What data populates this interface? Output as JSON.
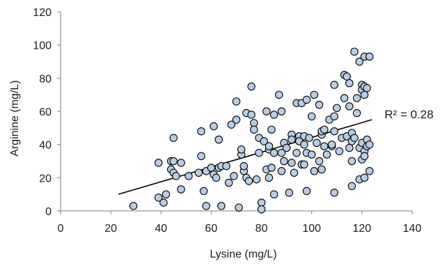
{
  "chart_data": {
    "type": "scatter",
    "xlabel": "Lysine (mg/L)",
    "ylabel": "Arginine (mg/L)",
    "xlim": [
      0,
      140
    ],
    "ylim": [
      0,
      120
    ],
    "x_ticks": [
      0,
      20,
      40,
      60,
      80,
      100,
      120,
      140
    ],
    "y_ticks": [
      0,
      20,
      40,
      60,
      80,
      100,
      120
    ],
    "grid": false,
    "legend": "none",
    "colors": {
      "marker_fill": "#b8cce4",
      "marker_stroke": "#000000",
      "trendline": "#000000"
    },
    "trendline": {
      "type": "linear",
      "x": [
        23,
        124
      ],
      "y": [
        10,
        55
      ],
      "annotation": "R² = 0.28"
    },
    "points": [
      [
        29,
        3
      ],
      [
        39,
        29
      ],
      [
        39,
        8
      ],
      [
        41,
        5
      ],
      [
        42,
        10
      ],
      [
        44,
        25
      ],
      [
        44,
        30
      ],
      [
        45,
        44
      ],
      [
        45,
        23
      ],
      [
        45,
        30
      ],
      [
        46,
        21
      ],
      [
        48,
        29
      ],
      [
        48,
        13
      ],
      [
        51,
        21
      ],
      [
        55,
        23
      ],
      [
        56,
        48
      ],
      [
        56,
        33
      ],
      [
        57,
        12
      ],
      [
        58,
        24
      ],
      [
        58,
        3
      ],
      [
        60,
        26
      ],
      [
        61,
        51
      ],
      [
        61,
        22
      ],
      [
        62,
        20
      ],
      [
        63,
        43
      ],
      [
        63,
        26
      ],
      [
        64,
        3
      ],
      [
        64,
        27
      ],
      [
        66,
        27
      ],
      [
        67,
        17
      ],
      [
        68,
        52
      ],
      [
        69,
        21
      ],
      [
        70,
        55
      ],
      [
        70,
        66
      ],
      [
        71,
        2
      ],
      [
        72,
        34
      ],
      [
        72,
        37
      ],
      [
        73,
        24
      ],
      [
        73,
        27
      ],
      [
        74,
        59
      ],
      [
        74,
        20
      ],
      [
        75,
        18
      ],
      [
        76,
        75
      ],
      [
        76,
        58
      ],
      [
        77,
        53
      ],
      [
        77,
        49
      ],
      [
        78,
        19
      ],
      [
        79,
        44
      ],
      [
        79,
        35
      ],
      [
        80,
        5
      ],
      [
        80,
        1
      ],
      [
        81,
        42
      ],
      [
        82,
        60
      ],
      [
        82,
        25
      ],
      [
        83,
        37
      ],
      [
        83,
        20
      ],
      [
        83,
        39
      ],
      [
        84,
        49
      ],
      [
        84,
        26
      ],
      [
        85,
        35
      ],
      [
        85,
        58
      ],
      [
        85,
        10
      ],
      [
        87,
        70
      ],
      [
        88,
        60
      ],
      [
        88,
        24
      ],
      [
        88,
        35
      ],
      [
        89,
        41
      ],
      [
        89,
        30
      ],
      [
        90,
        38
      ],
      [
        91,
        11
      ],
      [
        92,
        46
      ],
      [
        92,
        29
      ],
      [
        92,
        43
      ],
      [
        93,
        23
      ],
      [
        94,
        65
      ],
      [
        94,
        35
      ],
      [
        95,
        45
      ],
      [
        95,
        42
      ],
      [
        96,
        28
      ],
      [
        96,
        65
      ],
      [
        97,
        45
      ],
      [
        97,
        40
      ],
      [
        97,
        28
      ],
      [
        98,
        12
      ],
      [
        98,
        35
      ],
      [
        98,
        67
      ],
      [
        99,
        44
      ],
      [
        100,
        57
      ],
      [
        100,
        34
      ],
      [
        101,
        70
      ],
      [
        101,
        24
      ],
      [
        102,
        41
      ],
      [
        103,
        30
      ],
      [
        103,
        64
      ],
      [
        104,
        25
      ],
      [
        104,
        46
      ],
      [
        104,
        48
      ],
      [
        105,
        49
      ],
      [
        105,
        39
      ],
      [
        106,
        34
      ],
      [
        107,
        55
      ],
      [
        108,
        39
      ],
      [
        108,
        40
      ],
      [
        109,
        76
      ],
      [
        109,
        57
      ],
      [
        109,
        48
      ],
      [
        109,
        11
      ],
      [
        110,
        62
      ],
      [
        111,
        36
      ],
      [
        112,
        44
      ],
      [
        113,
        82
      ],
      [
        113,
        68
      ],
      [
        114,
        81
      ],
      [
        114,
        45
      ],
      [
        115,
        63
      ],
      [
        115,
        77
      ],
      [
        115,
        38
      ],
      [
        116,
        30
      ],
      [
        116,
        15
      ],
      [
        116,
        47
      ],
      [
        116,
        42
      ],
      [
        117,
        96
      ],
      [
        117,
        44
      ],
      [
        118,
        68
      ],
      [
        118,
        59
      ],
      [
        119,
        90
      ],
      [
        119,
        19
      ],
      [
        119,
        38
      ],
      [
        120,
        76
      ],
      [
        120,
        73
      ],
      [
        120,
        41
      ],
      [
        120,
        31
      ],
      [
        121,
        93
      ],
      [
        121,
        75
      ],
      [
        121,
        70
      ],
      [
        121,
        36
      ],
      [
        121,
        20
      ],
      [
        121,
        33
      ],
      [
        122,
        74
      ],
      [
        122,
        43
      ],
      [
        122,
        39
      ],
      [
        123,
        93
      ],
      [
        123,
        40
      ],
      [
        123,
        24
      ]
    ]
  }
}
